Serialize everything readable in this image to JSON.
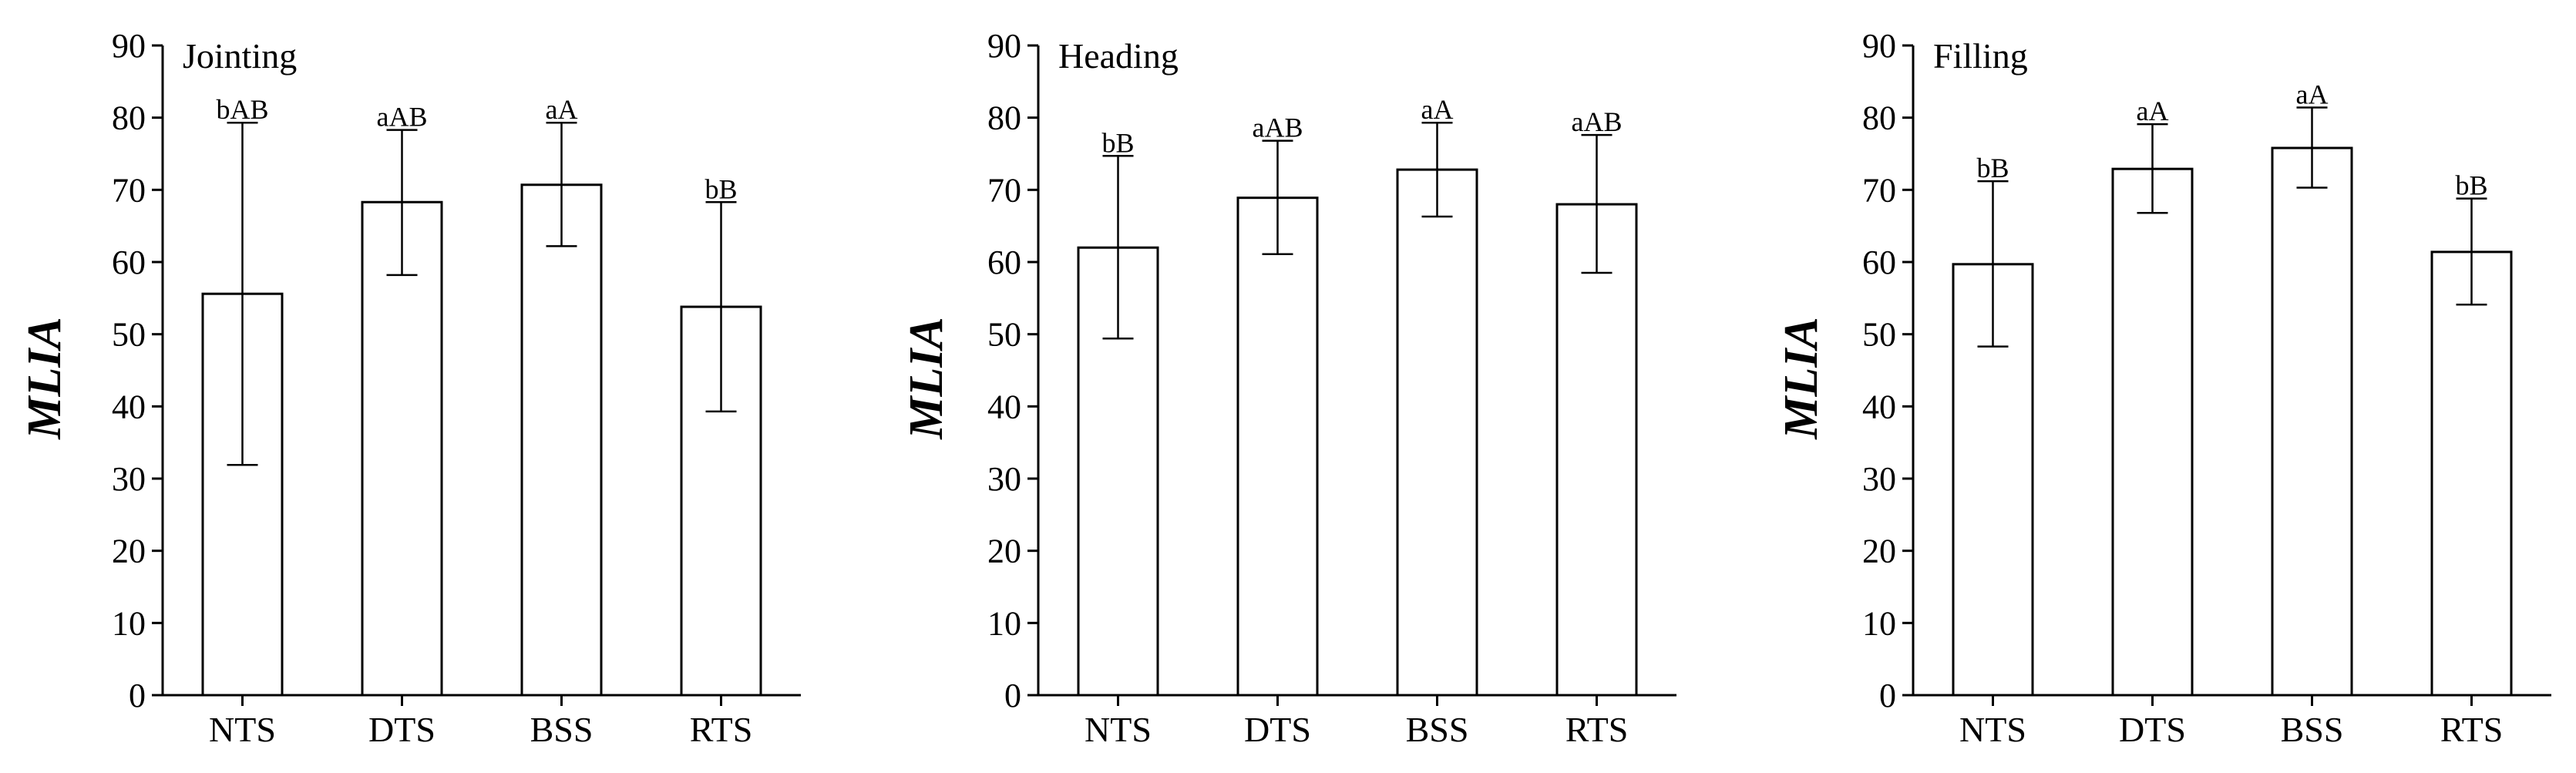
{
  "chart_data": [
    {
      "type": "bar",
      "title": "Jointing",
      "ylabel": "MLIA",
      "xlabel": "",
      "ylim": [
        0,
        90
      ],
      "yticks": [
        0,
        10,
        20,
        30,
        40,
        50,
        60,
        70,
        80,
        90
      ],
      "categories": [
        "NTS",
        "DTS",
        "BSS",
        "RTS"
      ],
      "values": [
        55.6,
        68.3,
        70.7,
        53.8
      ],
      "error_low": [
        31.9,
        58.2,
        62.2,
        39.3
      ],
      "error_high": [
        79.3,
        78.3,
        79.3,
        68.3
      ],
      "labels": [
        "bAB",
        "aAB",
        "aA",
        "bB"
      ],
      "grid": false
    },
    {
      "type": "bar",
      "title": "Heading",
      "ylabel": "MLIA",
      "xlabel": "",
      "ylim": [
        0,
        90
      ],
      "yticks": [
        0,
        10,
        20,
        30,
        40,
        50,
        60,
        70,
        80,
        90
      ],
      "categories": [
        "NTS",
        "DTS",
        "BSS",
        "RTS"
      ],
      "values": [
        62.0,
        68.9,
        72.8,
        68.0
      ],
      "error_low": [
        49.4,
        61.1,
        66.3,
        58.5
      ],
      "error_high": [
        74.7,
        76.8,
        79.3,
        77.6
      ],
      "labels": [
        "bB",
        "aAB",
        "aA",
        "aAB"
      ],
      "grid": false
    },
    {
      "type": "bar",
      "title": "Filling",
      "ylabel": "MLIA",
      "xlabel": "",
      "ylim": [
        0,
        90
      ],
      "yticks": [
        0,
        10,
        20,
        30,
        40,
        50,
        60,
        70,
        80,
        90
      ],
      "categories": [
        "NTS",
        "DTS",
        "BSS",
        "RTS"
      ],
      "values": [
        59.7,
        72.9,
        75.8,
        61.4
      ],
      "error_low": [
        48.3,
        66.8,
        70.3,
        54.1
      ],
      "error_high": [
        71.2,
        79.1,
        81.4,
        68.8
      ],
      "labels": [
        "bB",
        "aA",
        "aA",
        "bB"
      ],
      "grid": false
    }
  ]
}
